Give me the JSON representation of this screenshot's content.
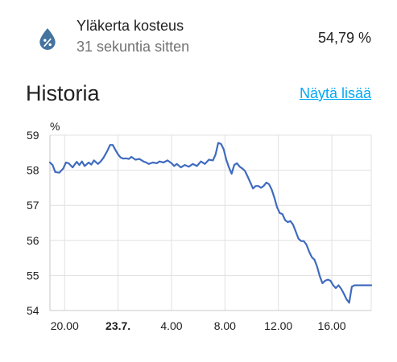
{
  "entity": {
    "icon": "water-percent-icon",
    "name": "Yläkerta kosteus",
    "last_changed": "31 sekuntia sitten",
    "state": "54,79 %",
    "icon_color": "#44739e"
  },
  "history": {
    "title": "Historia",
    "show_more": "Näytä lisää",
    "link_color": "#03a9f4"
  },
  "chart_data": {
    "type": "line",
    "ylabel": "%",
    "ylim": [
      54,
      59
    ],
    "yticks": [
      "59",
      "58",
      "57",
      "56",
      "55",
      "54"
    ],
    "xlim": [
      18.9,
      42.95
    ],
    "xticks": [
      {
        "x": 20,
        "label": "20.00",
        "bold": false
      },
      {
        "x": 24,
        "label": "23.7.",
        "bold": true
      },
      {
        "x": 28,
        "label": "4.00",
        "bold": false
      },
      {
        "x": 32,
        "label": "8.00",
        "bold": false
      },
      {
        "x": 36,
        "label": "12.00",
        "bold": false
      },
      {
        "x": 40,
        "label": "16.00",
        "bold": false
      }
    ],
    "grid": true,
    "line_color": "#3f6bbf",
    "series": [
      {
        "x": [
          18.9,
          19.1,
          19.3,
          19.6,
          19.9,
          20.1,
          20.3,
          20.6,
          20.9,
          21.1,
          21.3,
          21.5,
          21.8,
          22.0,
          22.2,
          22.5,
          22.7,
          22.9,
          23.2,
          23.4,
          23.6,
          23.8,
          24.0,
          24.2,
          24.4,
          24.6,
          24.8,
          25.0,
          25.3,
          25.6,
          25.9,
          26.1,
          26.3,
          26.6,
          26.9,
          27.1,
          27.4,
          27.7,
          28.0,
          28.2,
          28.4,
          28.7,
          29.0,
          29.3,
          29.6,
          29.9,
          30.2,
          30.5,
          30.8,
          31.1,
          31.3,
          31.5,
          31.7,
          31.9,
          32.1,
          32.3,
          32.5,
          32.7,
          32.9,
          33.1,
          33.3,
          33.5,
          33.7,
          33.9,
          34.1,
          34.3,
          34.5,
          34.7,
          34.9,
          35.1,
          35.3,
          35.5,
          35.7,
          35.9,
          36.1,
          36.3,
          36.5,
          36.7,
          36.9,
          37.1,
          37.3,
          37.5,
          37.7,
          37.9,
          38.1,
          38.3,
          38.5,
          38.7,
          38.9,
          39.1,
          39.3,
          39.5,
          39.7,
          39.9,
          40.1,
          40.3,
          40.5,
          40.7,
          40.9,
          41.1,
          41.3,
          41.5,
          41.7,
          41.9,
          42.1,
          42.3,
          42.5,
          42.7,
          42.95
        ],
        "y": [
          58.22,
          58.15,
          57.95,
          57.93,
          58.05,
          58.22,
          58.2,
          58.08,
          58.24,
          58.15,
          58.25,
          58.12,
          58.22,
          58.16,
          58.28,
          58.18,
          58.25,
          58.35,
          58.55,
          58.72,
          58.72,
          58.58,
          58.45,
          58.36,
          58.33,
          58.34,
          58.32,
          58.38,
          58.3,
          58.32,
          58.25,
          58.22,
          58.18,
          58.22,
          58.2,
          58.25,
          58.22,
          58.28,
          58.2,
          58.12,
          58.18,
          58.08,
          58.15,
          58.1,
          58.18,
          58.12,
          58.25,
          58.18,
          58.3,
          58.28,
          58.45,
          58.78,
          58.75,
          58.6,
          58.3,
          58.08,
          57.9,
          58.15,
          58.2,
          58.1,
          58.05,
          57.98,
          57.82,
          57.65,
          57.48,
          57.55,
          57.55,
          57.5,
          57.55,
          57.65,
          57.6,
          57.45,
          57.22,
          56.95,
          56.78,
          56.75,
          56.58,
          56.52,
          56.55,
          56.45,
          56.25,
          56.05,
          55.98,
          55.98,
          55.88,
          55.68,
          55.52,
          55.45,
          55.25,
          54.98,
          54.78,
          54.85,
          54.88,
          54.85,
          54.72,
          54.64,
          54.72,
          54.62,
          54.48,
          54.32,
          54.22,
          54.68,
          54.72,
          54.72,
          54.72,
          54.72,
          54.72,
          54.72,
          54.72
        ]
      }
    ]
  }
}
